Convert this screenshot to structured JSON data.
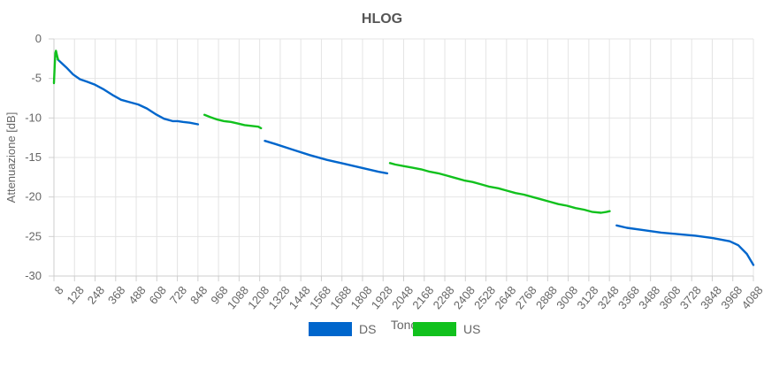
{
  "chart_data": {
    "type": "line",
    "title": "HLOG",
    "xlabel": "Tono",
    "ylabel": "Attenuazione [dB]",
    "xlim": [
      8,
      4088
    ],
    "ylim": [
      -30,
      0
    ],
    "x_ticks": [
      "8",
      "128",
      "248",
      "368",
      "488",
      "608",
      "728",
      "848",
      "968",
      "1088",
      "1208",
      "1328",
      "1448",
      "1568",
      "1688",
      "1808",
      "1928",
      "2048",
      "2168",
      "2288",
      "2408",
      "2528",
      "2648",
      "2768",
      "2888",
      "3008",
      "3128",
      "3248",
      "3368",
      "3488",
      "3608",
      "3728",
      "3848",
      "3968",
      "4088"
    ],
    "y_ticks": [
      "0",
      "-5",
      "-10",
      "-15",
      "-20",
      "-25",
      "-30"
    ],
    "grid": true,
    "legend_position": "bottom",
    "series": [
      {
        "name": "DS",
        "color": "#0066cc",
        "segments": [
          {
            "x": [
              30,
              80,
              120,
              160,
              200,
              248,
              300,
              350,
              400,
              450,
              500,
              550,
              600,
              650,
              700,
              730,
              760,
              800,
              848
            ],
            "y": [
              -2.6,
              -3.6,
              -4.5,
              -5.1,
              -5.4,
              -5.8,
              -6.4,
              -7.1,
              -7.7,
              -8.0,
              -8.3,
              -8.8,
              -9.5,
              -10.1,
              -10.4,
              -10.4,
              -10.5,
              -10.6,
              -10.8
            ]
          },
          {
            "x": [
              1238,
              1300,
              1400,
              1500,
              1600,
              1700,
              1800,
              1900,
              1952
            ],
            "y": [
              -12.9,
              -13.3,
              -14.0,
              -14.7,
              -15.3,
              -15.8,
              -16.3,
              -16.8,
              -17.0
            ]
          },
          {
            "x": [
              3290,
              3350,
              3450,
              3550,
              3650,
              3750,
              3850,
              3950,
              4000,
              4050,
              4088
            ],
            "y": [
              -23.6,
              -23.9,
              -24.2,
              -24.5,
              -24.7,
              -24.9,
              -25.2,
              -25.6,
              -26.1,
              -27.2,
              -28.6
            ]
          }
        ]
      },
      {
        "name": "US",
        "color": "#11c11d",
        "segments": [
          {
            "x": [
              8,
              12,
              16,
              20,
              24,
              28,
              32
            ],
            "y": [
              -5.6,
              -3.5,
              -1.8,
              -1.5,
              -1.9,
              -2.3,
              -2.6
            ]
          },
          {
            "x": [
              886,
              920,
              960,
              1000,
              1040,
              1080,
              1120,
              1160,
              1200,
              1216
            ],
            "y": [
              -9.6,
              -9.9,
              -10.2,
              -10.4,
              -10.5,
              -10.7,
              -10.9,
              -11.0,
              -11.1,
              -11.3
            ]
          },
          {
            "x": [
              1968,
              2000,
              2050,
              2100,
              2150,
              2200,
              2250,
              2300,
              2350,
              2400,
              2450,
              2500,
              2550,
              2600,
              2650,
              2700,
              2750,
              2800,
              2850,
              2900,
              2950,
              3000,
              3050,
              3100,
              3150,
              3200,
              3230,
              3250
            ],
            "y": [
              -15.7,
              -15.9,
              -16.1,
              -16.3,
              -16.5,
              -16.8,
              -17.0,
              -17.3,
              -17.6,
              -17.9,
              -18.1,
              -18.4,
              -18.7,
              -18.9,
              -19.2,
              -19.5,
              -19.7,
              -20.0,
              -20.3,
              -20.6,
              -20.9,
              -21.1,
              -21.4,
              -21.6,
              -21.9,
              -22.0,
              -21.9,
              -21.8
            ]
          }
        ]
      }
    ]
  }
}
